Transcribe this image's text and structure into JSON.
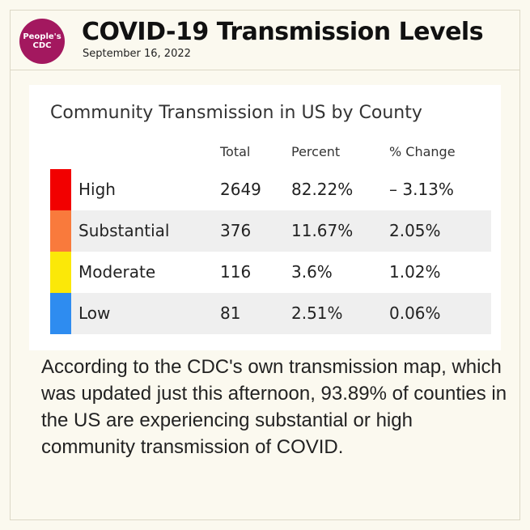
{
  "header": {
    "logo_line1": "People's",
    "logo_line2": "CDC",
    "title": "COVID-19 Transmission Levels",
    "date": "September 16, 2022"
  },
  "table": {
    "title": "Community Transmission in US by County",
    "columns": [
      "Total",
      "Percent",
      "% Change"
    ],
    "rows": [
      {
        "level": "High",
        "total": "2649",
        "percent": "82.22%",
        "change": "– 3.13%",
        "color": "#f20000"
      },
      {
        "level": "Substantial",
        "total": "376",
        "percent": "11.67%",
        "change": "2.05%",
        "color": "#f97a3c"
      },
      {
        "level": "Moderate",
        "total": "116",
        "percent": "3.6%",
        "change": "1.02%",
        "color": "#fbe808"
      },
      {
        "level": "Low",
        "total": "81",
        "percent": "2.51%",
        "change": "0.06%",
        "color": "#2e8cf0"
      }
    ]
  },
  "body": {
    "text": "According to the CDC's own transmission map, which was updated just this afternoon, 93.89% of counties in the US are experiencing substantial or high community transmission of COVID."
  }
}
